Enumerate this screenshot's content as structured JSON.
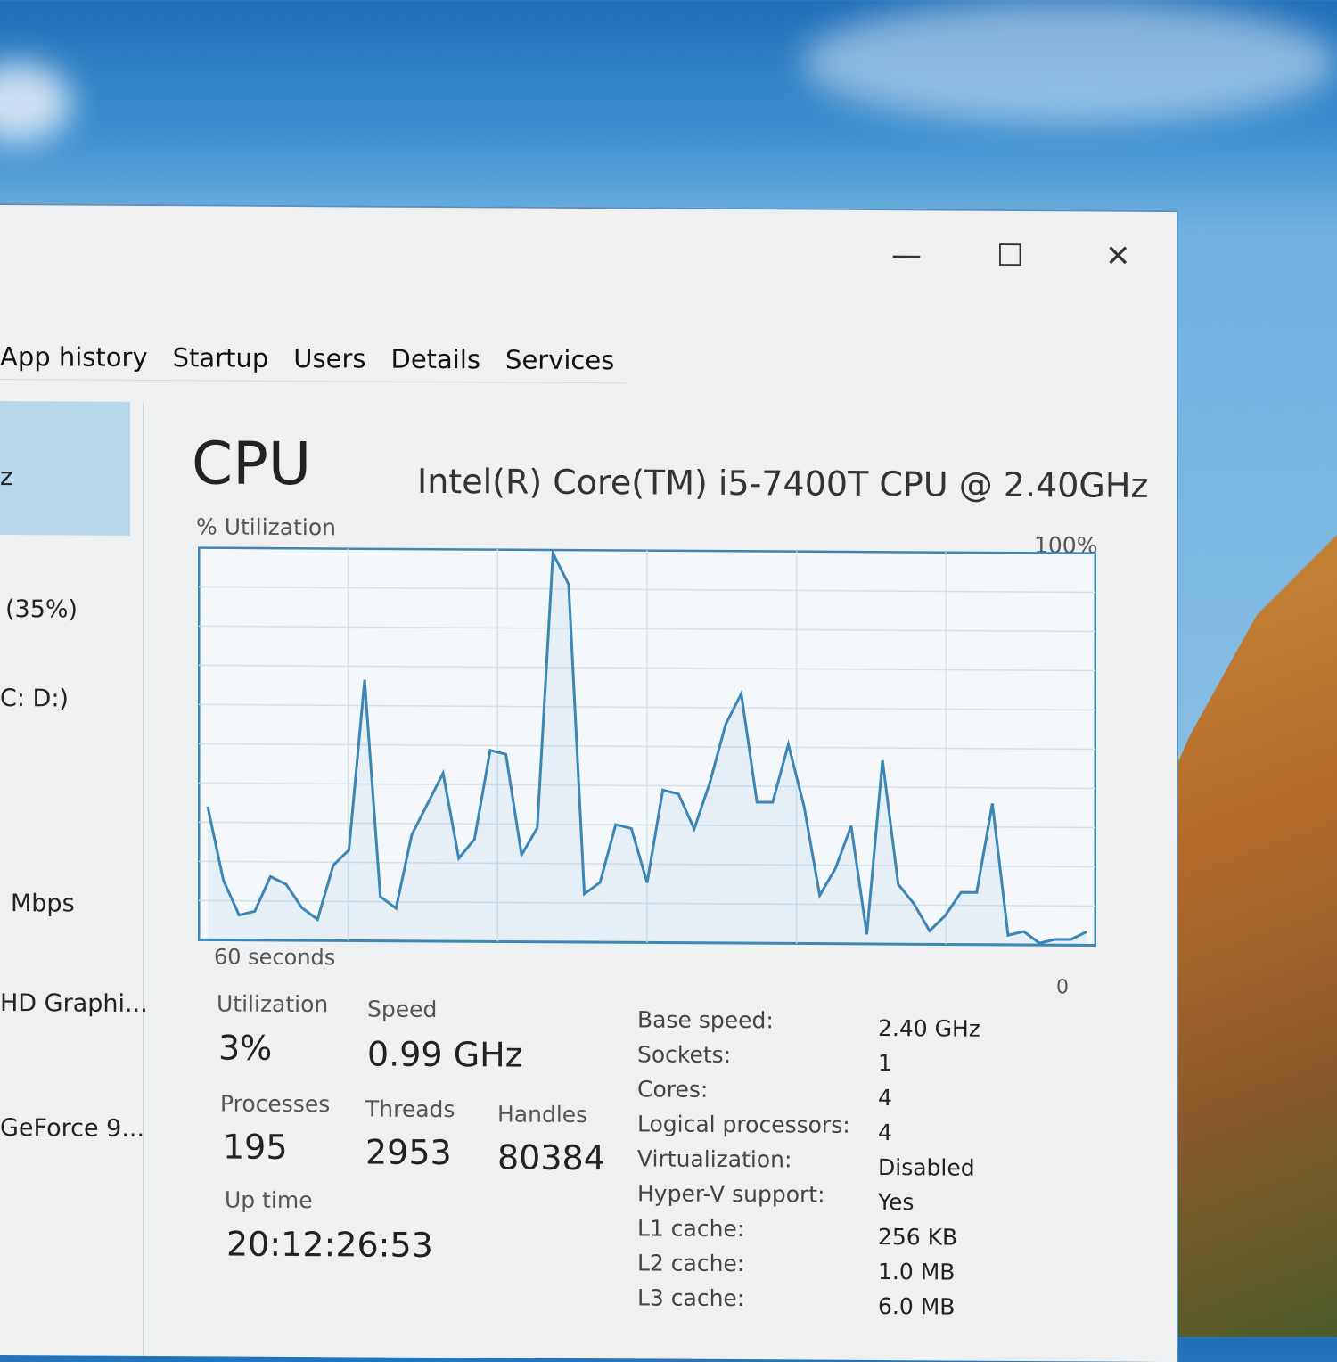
{
  "window": {
    "controls": {
      "minimize": "—",
      "maximize": "☐",
      "close": "✕"
    },
    "tabs": [
      "App history",
      "Startup",
      "Users",
      "Details",
      "Services"
    ]
  },
  "sidebar": {
    "items": [
      {
        "label": "z",
        "selected": true
      },
      {
        "label": "(35%)"
      },
      {
        "label": "C: D:)"
      },
      {
        "label": "Mbps"
      },
      {
        "label": "HD Graphi..."
      },
      {
        "label": "GeForce 9..."
      }
    ]
  },
  "cpu": {
    "title": "CPU",
    "model": "Intel(R) Core(TM) i5-7400T CPU @ 2.40GHz",
    "utilization_label": "% Utilization",
    "max_label": "100%",
    "time_label": "60 seconds",
    "min_label": "0",
    "line_color": "#3b86b4",
    "history_percent": [
      34,
      15,
      6,
      7,
      16,
      14,
      8,
      5,
      19,
      23,
      67,
      11,
      8,
      27,
      35,
      43,
      21,
      26,
      49,
      48,
      22,
      29,
      100,
      92,
      12,
      15,
      30,
      29,
      15,
      39,
      38,
      29,
      41,
      56,
      64,
      36,
      36,
      51,
      35,
      12,
      19,
      30,
      2,
      47,
      15,
      10,
      3,
      7,
      13,
      13,
      36,
      2,
      3,
      0,
      1,
      1,
      3
    ]
  },
  "stats": {
    "utilization": {
      "label": "Utilization",
      "value": "3%"
    },
    "speed": {
      "label": "Speed",
      "value": "0.99 GHz"
    },
    "processes": {
      "label": "Processes",
      "value": "195"
    },
    "threads": {
      "label": "Threads",
      "value": "2953"
    },
    "handles": {
      "label": "Handles",
      "value": "80384"
    },
    "uptime": {
      "label": "Up time",
      "value": "20:12:26:53"
    }
  },
  "details": [
    {
      "key": "Base speed:",
      "value": "2.40 GHz"
    },
    {
      "key": "Sockets:",
      "value": "1"
    },
    {
      "key": "Cores:",
      "value": "4"
    },
    {
      "key": "Logical processors:",
      "value": "4"
    },
    {
      "key": "Virtualization:",
      "value": "Disabled"
    },
    {
      "key": "Hyper-V support:",
      "value": "Yes"
    },
    {
      "key": "L1 cache:",
      "value": "256 KB"
    },
    {
      "key": "L2 cache:",
      "value": "1.0 MB"
    },
    {
      "key": "L3 cache:",
      "value": "6.0 MB"
    }
  ]
}
